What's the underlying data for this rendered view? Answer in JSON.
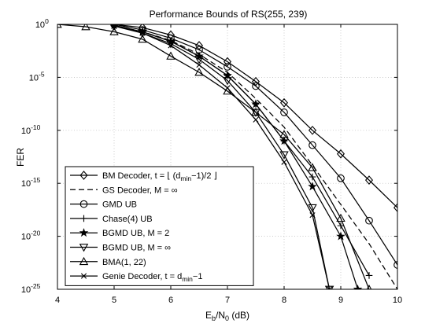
{
  "chart_data": {
    "type": "line",
    "title": "Performance Bounds of RS(255, 239)",
    "ylabel": "FER",
    "xlabel_parts": [
      "E",
      "b",
      "/N",
      "0",
      " (dB)"
    ],
    "xlim": [
      4,
      10
    ],
    "ylim": [
      1e-25,
      1
    ],
    "log_y": true,
    "grid": true,
    "legend_position": "bottom-left",
    "x_ticks": [
      "4",
      "5",
      "6",
      "7",
      "8",
      "9",
      "10"
    ],
    "y_ticks": [
      {
        "base": "10",
        "exp": "0",
        "value": 1
      },
      {
        "base": "10",
        "exp": "-5",
        "value": 1e-05
      },
      {
        "base": "10",
        "exp": "-10",
        "value": 1e-10
      },
      {
        "base": "10",
        "exp": "-15",
        "value": 1e-15
      },
      {
        "base": "10",
        "exp": "-20",
        "value": 1e-20
      },
      {
        "base": "10",
        "exp": "-25",
        "value": 1e-25
      }
    ],
    "series": [
      {
        "name": "BM Decoder, t = ⌊ (d_min−1)/2 ⌋",
        "legend_parts": [
          "BM Decoder, t = ⌊ (d",
          "min",
          "−1)/2 ⌋"
        ],
        "marker": "diamond",
        "dash": "",
        "x": [
          5.0,
          5.5,
          6.0,
          6.5,
          7.0,
          7.5,
          8.0,
          8.5,
          9.0,
          9.5,
          10.0
        ],
        "y": [
          1.0,
          0.5,
          0.1,
          0.01,
          0.0003,
          4e-06,
          4e-08,
          1e-10,
          6e-13,
          2e-15,
          5e-18
        ]
      },
      {
        "name": "GS Decoder, M = ∞",
        "legend_parts": [
          "GS Decoder, M = ∞"
        ],
        "marker": "none",
        "dash": "7 4",
        "x": [
          5.0,
          5.5,
          6.0,
          6.5,
          7.0,
          7.5,
          8.0,
          8.5,
          9.0,
          9.5,
          10.0
        ],
        "y": [
          0.8,
          0.2,
          0.03,
          0.0015,
          3e-05,
          1e-07,
          2e-10,
          5e-14,
          1e-17,
          2e-21,
          1e-25
        ]
      },
      {
        "name": "GMD UB",
        "legend_parts": [
          "GMD UB"
        ],
        "marker": "circle",
        "dash": "",
        "x": [
          5.0,
          5.5,
          6.0,
          6.5,
          7.0,
          7.5,
          8.0,
          8.5,
          9.0,
          9.5,
          10.0
        ],
        "y": [
          1.0,
          0.3,
          0.05,
          0.004,
          0.0001,
          1.5e-06,
          5e-09,
          4e-12,
          3e-15,
          3e-19,
          2e-23
        ]
      },
      {
        "name": "Chase(4) UB",
        "legend_parts": [
          "Chase(4) UB"
        ],
        "marker": "plus",
        "dash": "",
        "x": [
          5.0,
          5.5,
          6.0,
          6.5,
          7.0,
          7.5,
          8.0,
          8.5,
          9.0,
          9.5
        ],
        "y": [
          0.8,
          0.2,
          0.025,
          0.001,
          1.5e-05,
          3e-08,
          1e-11,
          4e-15,
          1e-19,
          2e-24
        ]
      },
      {
        "name": "BGMD UB, M = 2",
        "legend_parts": [
          "BGMD UB, M = 2"
        ],
        "marker": "star",
        "dash": "",
        "x": [
          5.0,
          5.5,
          6.0,
          6.5,
          7.0,
          7.5,
          8.0,
          8.5,
          9.0,
          9.3
        ],
        "y": [
          0.8,
          0.2,
          0.025,
          0.001,
          1.5e-05,
          3e-08,
          1e-11,
          5e-16,
          1e-20,
          1e-25
        ]
      },
      {
        "name": "BGMD UB, M = ∞",
        "legend_parts": [
          "BGMD UB, M = ∞"
        ],
        "marker": "triangle-down",
        "dash": "",
        "x": [
          5.0,
          5.5,
          6.0,
          6.5,
          7.0,
          7.5,
          8.0,
          8.5,
          8.8
        ],
        "y": [
          0.7,
          0.15,
          0.015,
          0.0005,
          5e-06,
          5e-09,
          5e-13,
          5e-18,
          1e-25
        ]
      },
      {
        "name": "BMA(1, 22)",
        "legend_parts": [
          "BMA(1, 22)"
        ],
        "marker": "triangle-up",
        "dash": "",
        "x": [
          4.0,
          4.5,
          5.0,
          5.5,
          6.0,
          6.5,
          7.0,
          7.5,
          8.0,
          8.5,
          9.0,
          9.5
        ],
        "y": [
          1.0,
          0.6,
          0.2,
          0.04,
          0.001,
          3e-05,
          5e-07,
          5e-09,
          4e-11,
          3e-14,
          5e-19,
          1e-25
        ]
      },
      {
        "name": "Genie Decoder, t = d_min−1",
        "legend_parts": [
          "Genie Decoder, t = d",
          "min",
          "−1"
        ],
        "marker": "x",
        "dash": "",
        "x": [
          5.0,
          5.5,
          6.0,
          6.5,
          7.0,
          7.5,
          8.0,
          8.5,
          8.8
        ],
        "y": [
          0.8,
          0.15,
          0.01,
          0.00015,
          1e-06,
          1e-09,
          1e-13,
          1e-18,
          1e-25
        ]
      }
    ]
  }
}
